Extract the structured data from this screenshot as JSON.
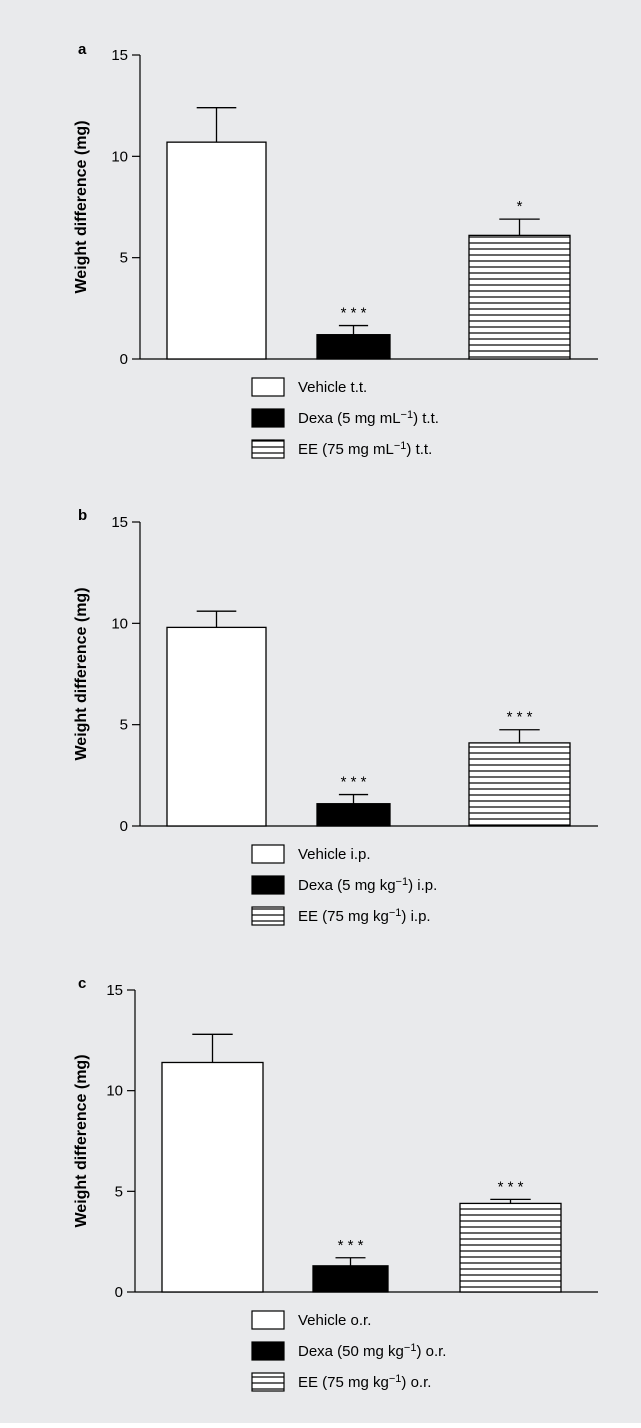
{
  "figure_background": "#e9eaec",
  "chart_data": [
    {
      "panel": "a",
      "type": "bar",
      "ylabel": "Weight difference (mg)",
      "ylim": [
        0,
        15
      ],
      "yticks": [
        "0",
        "5",
        "10",
        "15"
      ],
      "categories": [
        "Vehicle t.t.",
        "Dexa (5 mg mL⁻¹) t.t.",
        "EE (75 mg mL⁻¹) t.t."
      ],
      "values": [
        10.7,
        1.2,
        6.1
      ],
      "errors": [
        1.7,
        0.45,
        0.8
      ],
      "significance": [
        "",
        "* * *",
        "*"
      ],
      "fills": [
        "white",
        "black",
        "horizontal-stripes"
      ],
      "grid": false,
      "legend_position": "bottom"
    },
    {
      "panel": "b",
      "type": "bar",
      "ylabel": "Weight difference (mg)",
      "ylim": [
        0,
        15
      ],
      "yticks": [
        "0",
        "5",
        "10",
        "15"
      ],
      "categories": [
        "Vehicle i.p.",
        "Dexa (5 mg kg⁻¹) i.p.",
        "EE (75 mg kg⁻¹) i.p."
      ],
      "values": [
        9.8,
        1.1,
        4.1
      ],
      "errors": [
        0.8,
        0.45,
        0.65
      ],
      "significance": [
        "",
        "* * *",
        "* * *"
      ],
      "fills": [
        "white",
        "black",
        "horizontal-stripes"
      ],
      "grid": false,
      "legend_position": "bottom"
    },
    {
      "panel": "c",
      "type": "bar",
      "ylabel": "Weight difference (mg)",
      "ylim": [
        0,
        15
      ],
      "yticks": [
        "0",
        "5",
        "10",
        "15"
      ],
      "categories": [
        "Vehicle o.r.",
        "Dexa (50 mg kg⁻¹) o.r.",
        "EE (75 mg kg⁻¹) o.r."
      ],
      "values": [
        11.4,
        1.3,
        4.4
      ],
      "errors": [
        1.4,
        0.4,
        0.2
      ],
      "significance": [
        "",
        "* * *",
        "* * *"
      ],
      "fills": [
        "white",
        "black",
        "horizontal-stripes"
      ],
      "grid": false,
      "legend_position": "bottom"
    }
  ]
}
